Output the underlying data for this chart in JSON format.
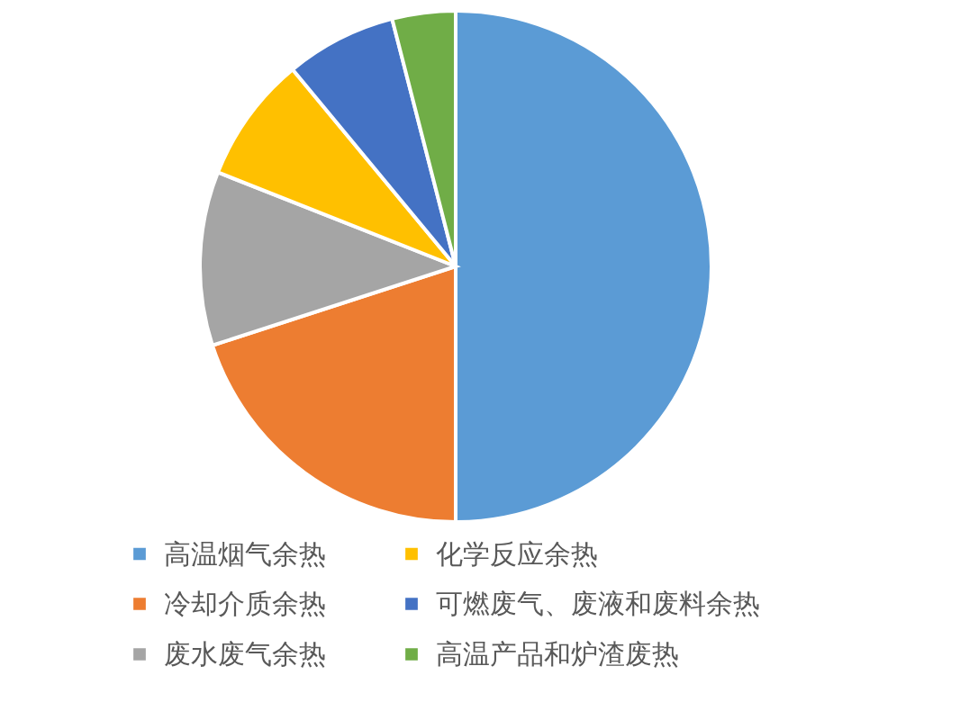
{
  "chart_data": {
    "type": "pie",
    "categories": [
      "高温烟气余热",
      "冷却介质余热",
      "废水废气余热",
      "化学反应余热",
      "可燃废气、废液和废料余热",
      "高温产品和炉渣废热"
    ],
    "values": [
      50,
      20,
      11,
      8,
      7,
      4
    ],
    "colors": [
      "#5b9bd5",
      "#ed7d31",
      "#a5a5a5",
      "#ffc000",
      "#4472c4",
      "#70ad47"
    ],
    "legend": "bottom"
  }
}
